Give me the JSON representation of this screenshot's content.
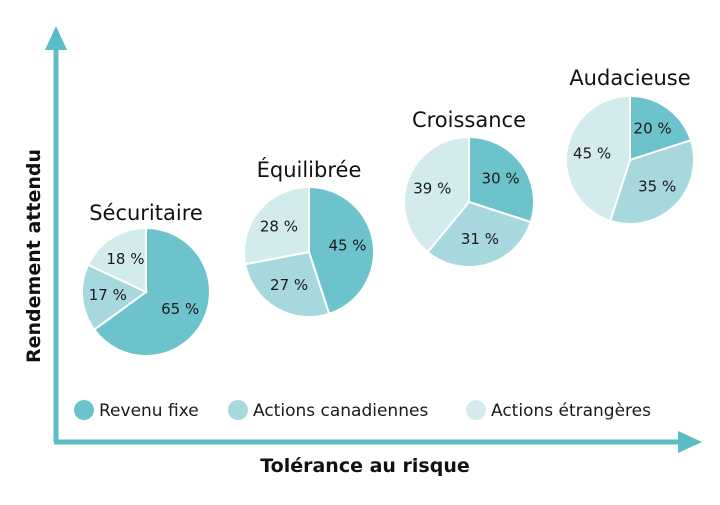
{
  "chart_data": {
    "type": "pie",
    "xlabel": "Tolérance au risque",
    "ylabel": "Rendement attendu",
    "categories": [
      "Revenu fixe",
      "Actions canadiennes",
      "Actions étrangères"
    ],
    "colors": [
      "#6cc3cc",
      "#a6d8de",
      "#d4ebee"
    ],
    "legend_position": "bottom",
    "pies": [
      {
        "name": "Sécuritaire",
        "values": [
          65,
          17,
          18
        ]
      },
      {
        "name": "Équilibrée",
        "values": [
          45,
          27,
          28
        ]
      },
      {
        "name": "Croissance",
        "values": [
          30,
          31,
          39
        ]
      },
      {
        "name": "Audacieuse",
        "values": [
          20,
          35,
          45
        ]
      }
    ],
    "unit": "%"
  }
}
